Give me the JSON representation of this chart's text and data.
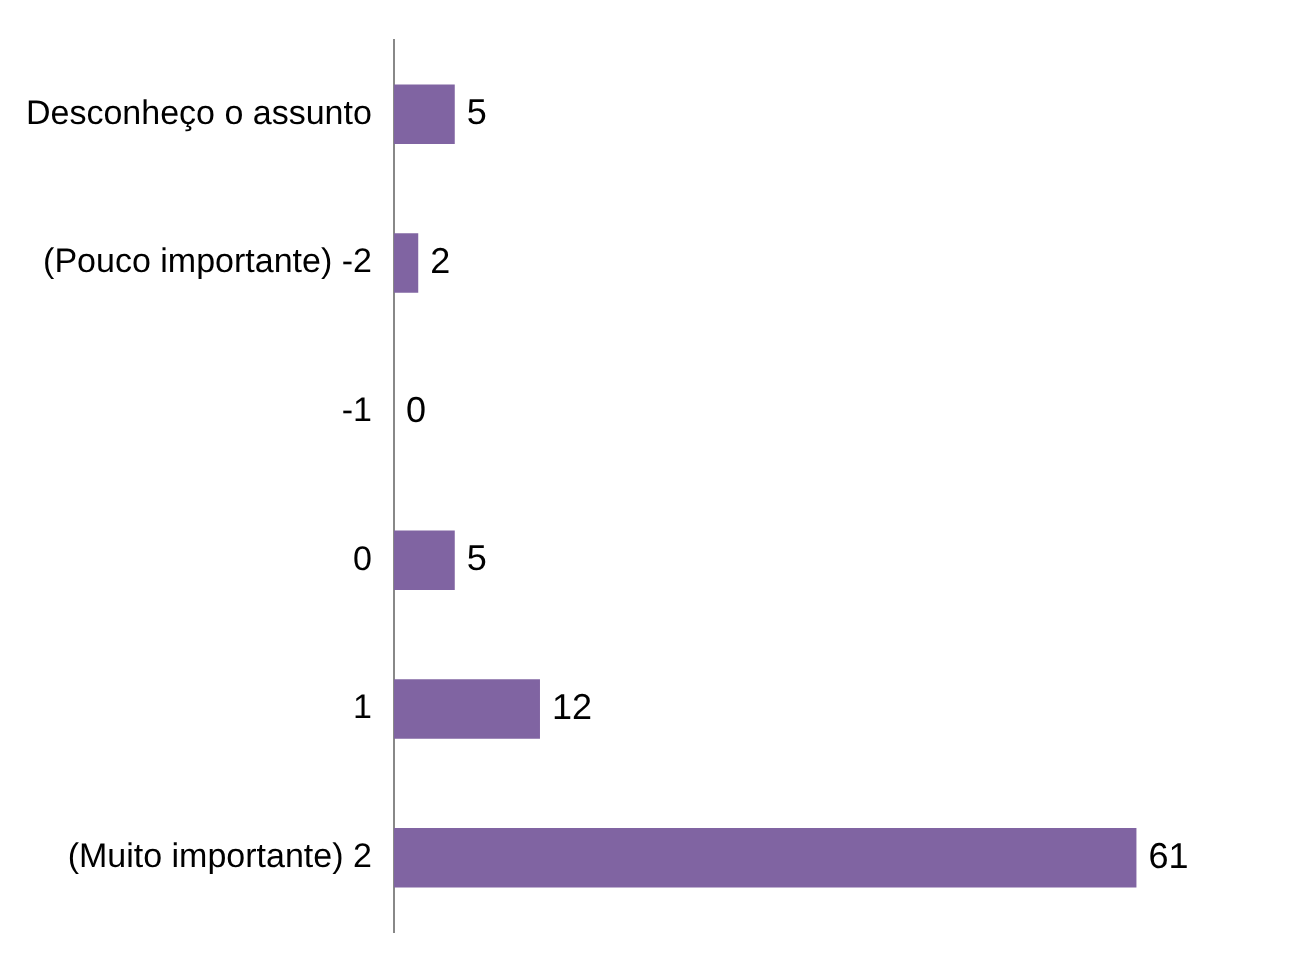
{
  "chart_data": {
    "type": "bar",
    "orientation": "horizontal",
    "categories": [
      "Desconheço o assunto",
      "(Pouco importante) -2",
      "-1",
      "0",
      "1",
      "(Muito importante) 2"
    ],
    "values": [
      5,
      2,
      0,
      5,
      12,
      61
    ],
    "color": "#8064a2",
    "data_labels": true,
    "tick_labels": "y"
  }
}
